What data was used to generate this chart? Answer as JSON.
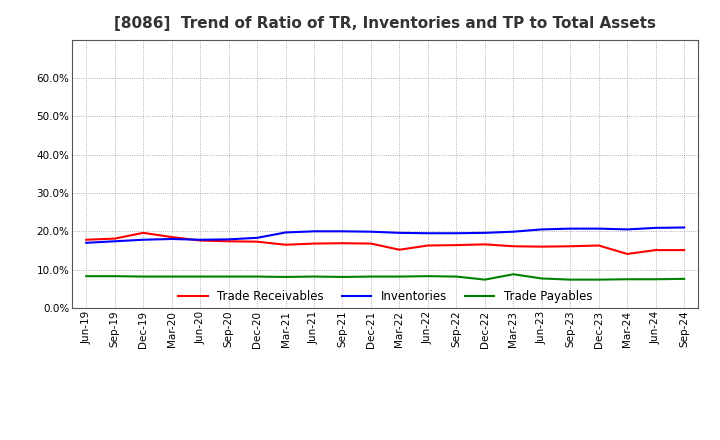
{
  "title": "[8086]  Trend of Ratio of TR, Inventories and TP to Total Assets",
  "x_labels": [
    "Jun-19",
    "Sep-19",
    "Dec-19",
    "Mar-20",
    "Jun-20",
    "Sep-20",
    "Dec-20",
    "Mar-21",
    "Jun-21",
    "Sep-21",
    "Dec-21",
    "Mar-22",
    "Jun-22",
    "Sep-22",
    "Dec-22",
    "Mar-23",
    "Jun-23",
    "Sep-23",
    "Dec-23",
    "Mar-24",
    "Jun-24",
    "Sep-24"
  ],
  "trade_receivables": [
    0.178,
    0.181,
    0.196,
    0.185,
    0.176,
    0.174,
    0.173,
    0.165,
    0.168,
    0.169,
    0.168,
    0.152,
    0.163,
    0.164,
    0.166,
    0.161,
    0.16,
    0.161,
    0.163,
    0.141,
    0.151,
    0.151
  ],
  "inventories": [
    0.17,
    0.174,
    0.178,
    0.18,
    0.178,
    0.179,
    0.183,
    0.197,
    0.2,
    0.2,
    0.199,
    0.196,
    0.195,
    0.195,
    0.196,
    0.199,
    0.205,
    0.207,
    0.207,
    0.205,
    0.209,
    0.21
  ],
  "trade_payables": [
    0.083,
    0.083,
    0.082,
    0.082,
    0.082,
    0.082,
    0.082,
    0.081,
    0.082,
    0.081,
    0.082,
    0.082,
    0.083,
    0.082,
    0.074,
    0.088,
    0.077,
    0.074,
    0.074,
    0.075,
    0.075,
    0.076
  ],
  "line_colors": {
    "trade_receivables": "#ff0000",
    "inventories": "#0000ff",
    "trade_payables": "#008000"
  },
  "legend_labels": [
    "Trade Receivables",
    "Inventories",
    "Trade Payables"
  ],
  "ylim": [
    0.0,
    0.7
  ],
  "yticks": [
    0.0,
    0.1,
    0.2,
    0.3,
    0.4,
    0.5,
    0.6
  ],
  "background_color": "#ffffff",
  "plot_bg_color": "#ffffff",
  "grid_color": "#999999",
  "title_fontsize": 11,
  "title_color": "#333333",
  "tick_fontsize": 7.5,
  "legend_fontsize": 8.5
}
